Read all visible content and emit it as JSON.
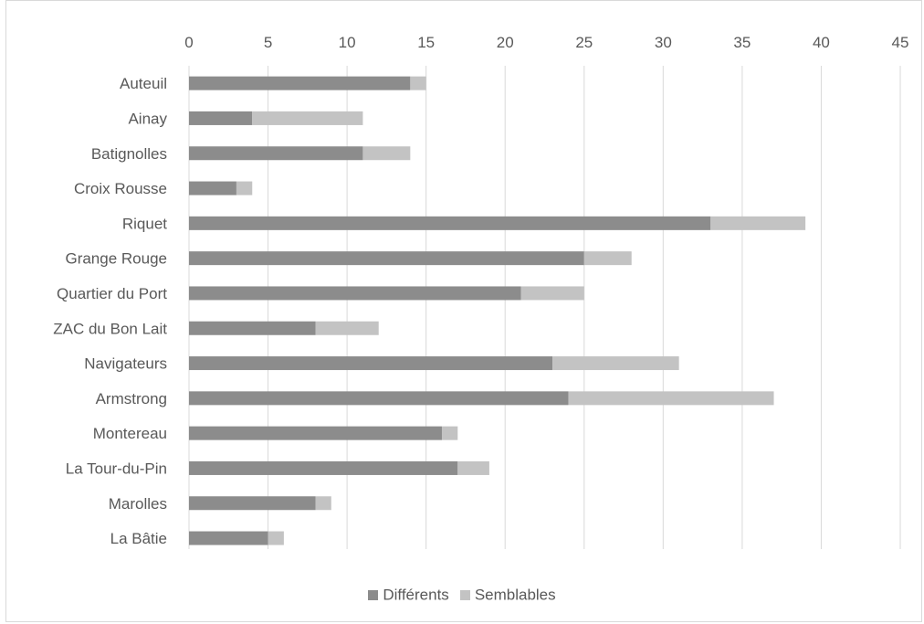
{
  "chart_data": {
    "type": "bar",
    "orientation": "horizontal",
    "stacked": true,
    "categories": [
      "Auteuil",
      "Ainay",
      "Batignolles",
      "Croix Rousse",
      "Riquet",
      "Grange Rouge",
      "Quartier du Port",
      "ZAC du Bon Lait",
      "Navigateurs",
      "Armstrong",
      "Montereau",
      "La Tour-du-Pin",
      "Marolles",
      "La Bâtie"
    ],
    "series": [
      {
        "name": "Différents",
        "color": "#8c8c8c",
        "values": [
          14,
          4,
          11,
          3,
          33,
          25,
          21,
          8,
          23,
          24,
          16,
          17,
          8,
          5
        ]
      },
      {
        "name": "Semblables",
        "color": "#c3c3c3",
        "values": [
          1,
          7,
          3,
          1,
          6,
          3,
          4,
          4,
          8,
          13,
          1,
          2,
          1,
          1
        ]
      }
    ],
    "xlim": [
      0,
      45
    ],
    "xticks": [
      0,
      5,
      10,
      15,
      20,
      25,
      30,
      35,
      40,
      45
    ],
    "x_axis_position": "top",
    "grid": true,
    "legend_position": "bottom",
    "title": "",
    "xlabel": "",
    "ylabel": ""
  }
}
